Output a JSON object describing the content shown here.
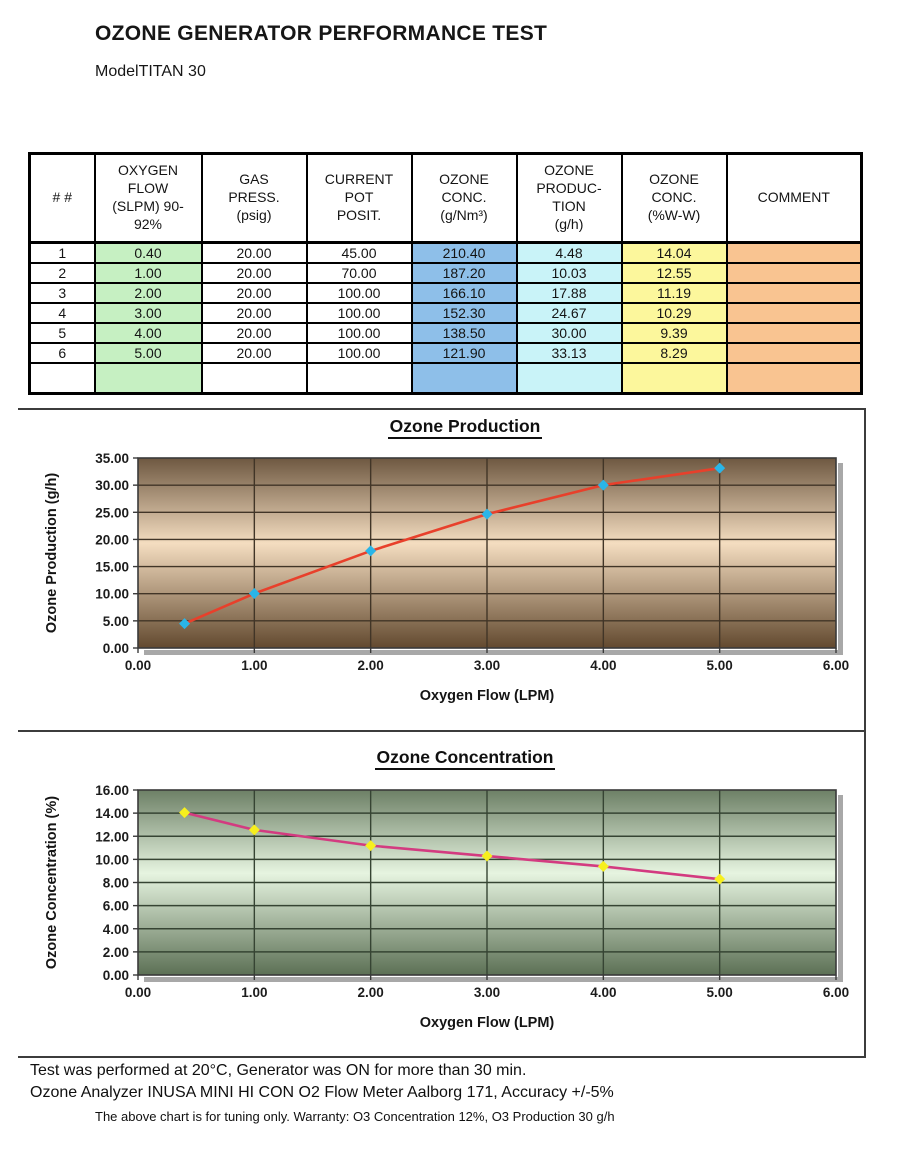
{
  "page": {
    "title": "OZONE GENERATOR PERFORMANCE TEST",
    "model_label": "Model",
    "model_value": "TITAN 30"
  },
  "table": {
    "headers": [
      "# #",
      "OXYGEN\nFLOW\n(SLPM) 90-\n92%",
      "GAS\nPRESS.\n(psig)",
      "CURRENT\nPOT\nPOSIT.",
      "OZONE\nCONC.\n(g/Nm³)",
      "OZONE\nPRODUC-\nTION\n(g/h)",
      "OZONE\nCONC.\n(%W-W)",
      "COMMENT"
    ],
    "rows": [
      [
        "1",
        "0.40",
        "20.00",
        "45.00",
        "210.40",
        "4.48",
        "14.04",
        ""
      ],
      [
        "2",
        "1.00",
        "20.00",
        "70.00",
        "187.20",
        "10.03",
        "12.55",
        ""
      ],
      [
        "3",
        "2.00",
        "20.00",
        "100.00",
        "166.10",
        "17.88",
        "11.19",
        ""
      ],
      [
        "4",
        "3.00",
        "20.00",
        "100.00",
        "152.30",
        "24.67",
        "10.29",
        ""
      ],
      [
        "5",
        "4.00",
        "20.00",
        "100.00",
        "138.50",
        "30.00",
        "9.39",
        ""
      ],
      [
        "6",
        "5.00",
        "20.00",
        "100.00",
        "121.90",
        "33.13",
        "8.29",
        ""
      ],
      [
        "",
        "",
        "",
        "",
        "",
        "",
        "",
        ""
      ]
    ],
    "column_colors": [
      "#ffffff",
      "#c6f0c2",
      "#ffffff",
      "#ffffff",
      "#8ebfe9",
      "#c9f3f8",
      "#fcf79c",
      "#f9c491"
    ]
  },
  "chart_data": [
    {
      "type": "line",
      "title": "Ozone Production",
      "xlabel": "Oxygen Flow (LPM)",
      "ylabel": "Ozone Production (g/h)",
      "x": [
        0.4,
        1.0,
        2.0,
        3.0,
        4.0,
        5.0
      ],
      "y": [
        4.48,
        10.03,
        17.88,
        24.67,
        30.0,
        33.13
      ],
      "xlim": [
        0,
        6
      ],
      "xstep": 1,
      "ylim": [
        0,
        35
      ],
      "ystep": 5,
      "grid": true,
      "legend": "none",
      "line_color": "#e8402b",
      "marker_color": "#2ab5e8",
      "grid_color": "#413527",
      "bg_gradient": [
        "#6e5841",
        "#f4ddc0",
        "#62492f"
      ]
    },
    {
      "type": "line",
      "title": "Ozone Concentration",
      "xlabel": "Oxygen Flow (LPM)",
      "ylabel": "Ozone Concentration (%)",
      "x": [
        0.4,
        1.0,
        2.0,
        3.0,
        4.0,
        5.0
      ],
      "y": [
        14.04,
        12.55,
        11.19,
        10.29,
        9.39,
        8.29
      ],
      "xlim": [
        0,
        6
      ],
      "xstep": 1,
      "ylim": [
        0,
        16
      ],
      "ystep": 2,
      "grid": true,
      "legend": "none",
      "line_color": "#d33b80",
      "marker_color": "#f6ef1e",
      "grid_color": "#364433",
      "bg_gradient": [
        "#6d8066",
        "#e6f4e0",
        "#5c7055"
      ]
    }
  ],
  "footer": {
    "line1": "Test was performed at 20°C, Generator was ON for more than 30 min.",
    "line2": "Ozone Analyzer INUSA MINI HI CON O2 Flow Meter Aalborg 171, Accuracy +/-5%",
    "line3": "The above chart is for tuning only. Warranty: O3 Concentration 12%, O3 Production 30 g/h"
  }
}
